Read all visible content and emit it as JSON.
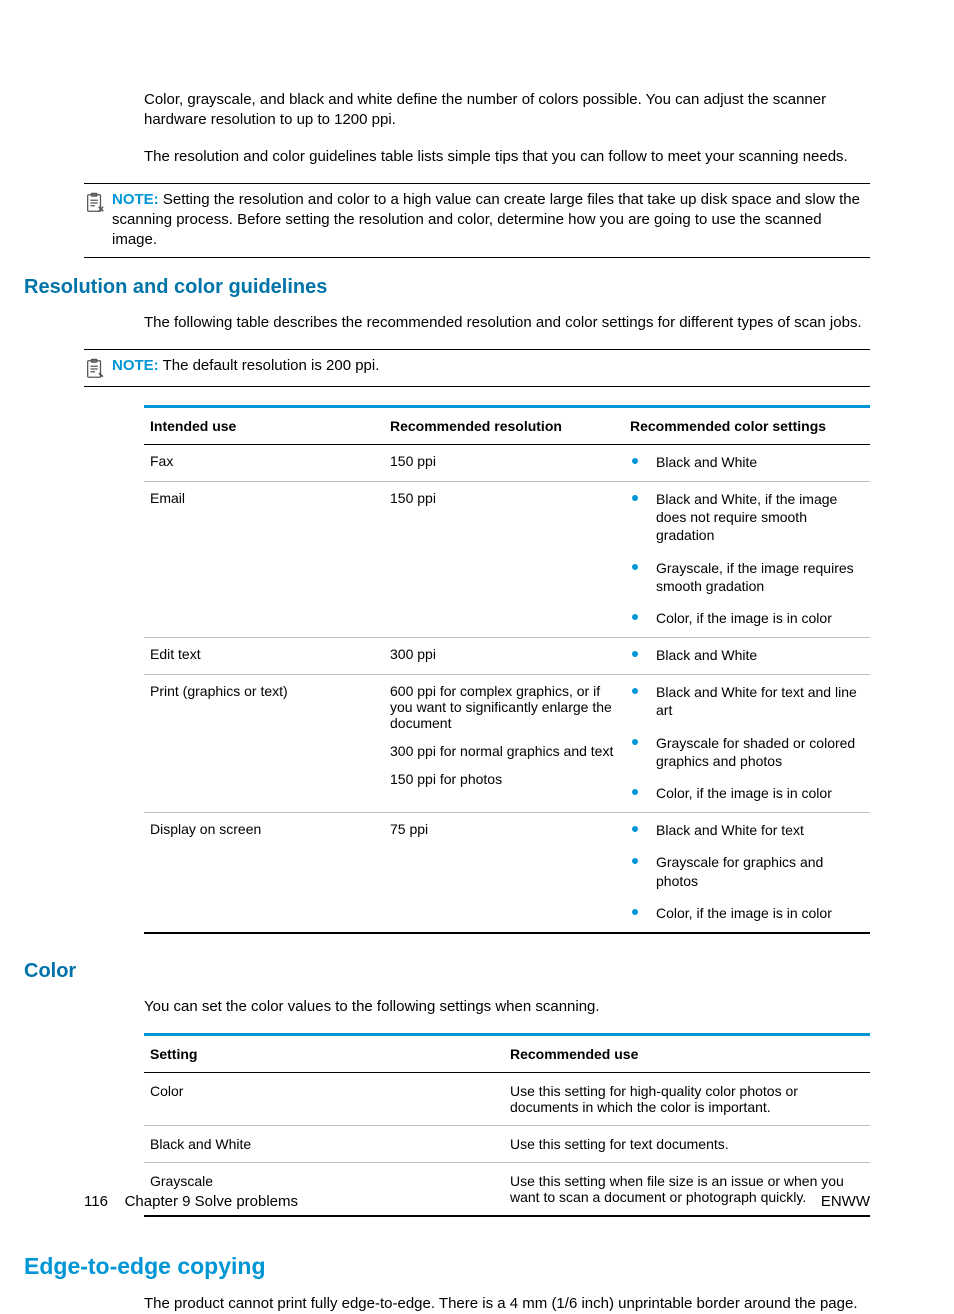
{
  "colors": {
    "accent": "#0096d6",
    "headingDark": "#0073a8",
    "rule": "#bfbfbf"
  },
  "intro": {
    "p1": "Color, grayscale, and black and white define the number of colors possible. You can adjust the scanner hardware resolution to up to 1200 ppi.",
    "p2": "The resolution and color guidelines table lists simple tips that you can follow to meet your scanning needs."
  },
  "note1": {
    "label": "NOTE:",
    "text": "Setting the resolution and color to a high value can create large files that take up disk space and slow the scanning process. Before setting the resolution and color, determine how you are going to use the scanned image."
  },
  "section1": {
    "heading": "Resolution and color guidelines",
    "intro": "The following table describes the recommended resolution and color settings for different types of scan jobs."
  },
  "note2": {
    "label": "NOTE:",
    "text": "The default resolution is 200 ppi."
  },
  "table1": {
    "headers": [
      "Intended use",
      "Recommended resolution",
      "Recommended color settings"
    ],
    "rows": [
      {
        "use": "Fax",
        "res": [
          "150 ppi"
        ],
        "color": [
          "Black and White"
        ]
      },
      {
        "use": "Email",
        "res": [
          "150 ppi"
        ],
        "color": [
          "Black and White, if the image does not require smooth gradation",
          "Grayscale, if the image requires smooth gradation",
          "Color, if the image is in color"
        ]
      },
      {
        "use": "Edit text",
        "res": [
          "300 ppi"
        ],
        "color": [
          "Black and White"
        ]
      },
      {
        "use": "Print (graphics or text)",
        "res": [
          "600 ppi for complex graphics, or if you want to significantly enlarge the document",
          "300 ppi for normal graphics and text",
          "150 ppi for photos"
        ],
        "color": [
          "Black and White for text and line art",
          "Grayscale for shaded or colored graphics and photos",
          "Color, if the image is in color"
        ]
      },
      {
        "use": "Display on screen",
        "res": [
          "75 ppi"
        ],
        "color": [
          "Black and White for text",
          "Grayscale for graphics and photos",
          "Color, if the image is in color"
        ]
      }
    ]
  },
  "section2": {
    "heading": "Color",
    "intro": "You can set the color values to the following settings when scanning."
  },
  "table2": {
    "headers": [
      "Setting",
      "Recommended use"
    ],
    "rows": [
      {
        "setting": "Color",
        "use": "Use this setting for high-quality color photos or documents in which the color is important."
      },
      {
        "setting": "Black and White",
        "use": "Use this setting for text documents."
      },
      {
        "setting": "Grayscale",
        "use": "Use this setting when file size is an issue or when you want to scan a document or photograph quickly."
      }
    ]
  },
  "section3": {
    "heading": "Edge-to-edge copying",
    "body": "The product cannot print fully edge-to-edge. There is a 4 mm (1/6 inch) unprintable border around the page."
  },
  "footer": {
    "page": "116",
    "chapter": "Chapter 9   Solve problems",
    "right": "ENWW"
  }
}
